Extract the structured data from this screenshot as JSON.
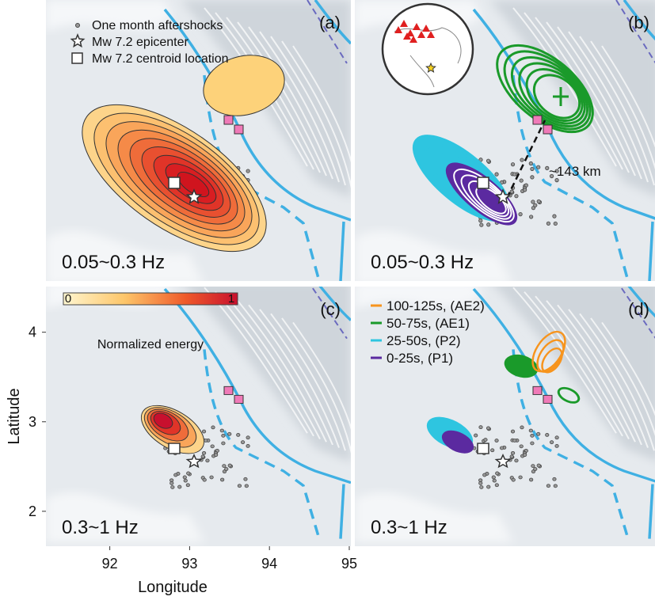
{
  "figure": {
    "axes": {
      "x_label": "Longitude",
      "y_label": "Latitude",
      "xlim": [
        91.2,
        95.02
      ],
      "xticks": [
        92,
        93,
        94,
        95
      ],
      "ylim": [
        1.61,
        4.51
      ],
      "yticks": [
        2,
        3,
        4
      ]
    },
    "panels": [
      {
        "tag": "(a)",
        "band": "0.05~0.3 Hz"
      },
      {
        "tag": "(b)",
        "band": "0.05~0.3 Hz",
        "distance": "~143 km"
      },
      {
        "tag": "(c)",
        "band": "0.3~1 Hz"
      },
      {
        "tag": "(d)",
        "band": "0.3~1 Hz"
      }
    ],
    "symbol_legend": [
      "One month aftershocks",
      "Mw 7.2 epicenter",
      "Mw 7.2 centroid location"
    ],
    "colorbar": {
      "ticks": [
        0,
        1
      ],
      "label": "Normalized energy"
    },
    "window_legend": [
      {
        "name": "100-125s, (AE2)",
        "color": "#f7941d"
      },
      {
        "name": "50-75s, (AE1)",
        "color": "#1a9a2a"
      },
      {
        "name": "25-50s, (P2)",
        "color": "#2ec5e0"
      },
      {
        "name": "0-25s, (P1)",
        "color": "#5b2aa0"
      }
    ]
  }
}
